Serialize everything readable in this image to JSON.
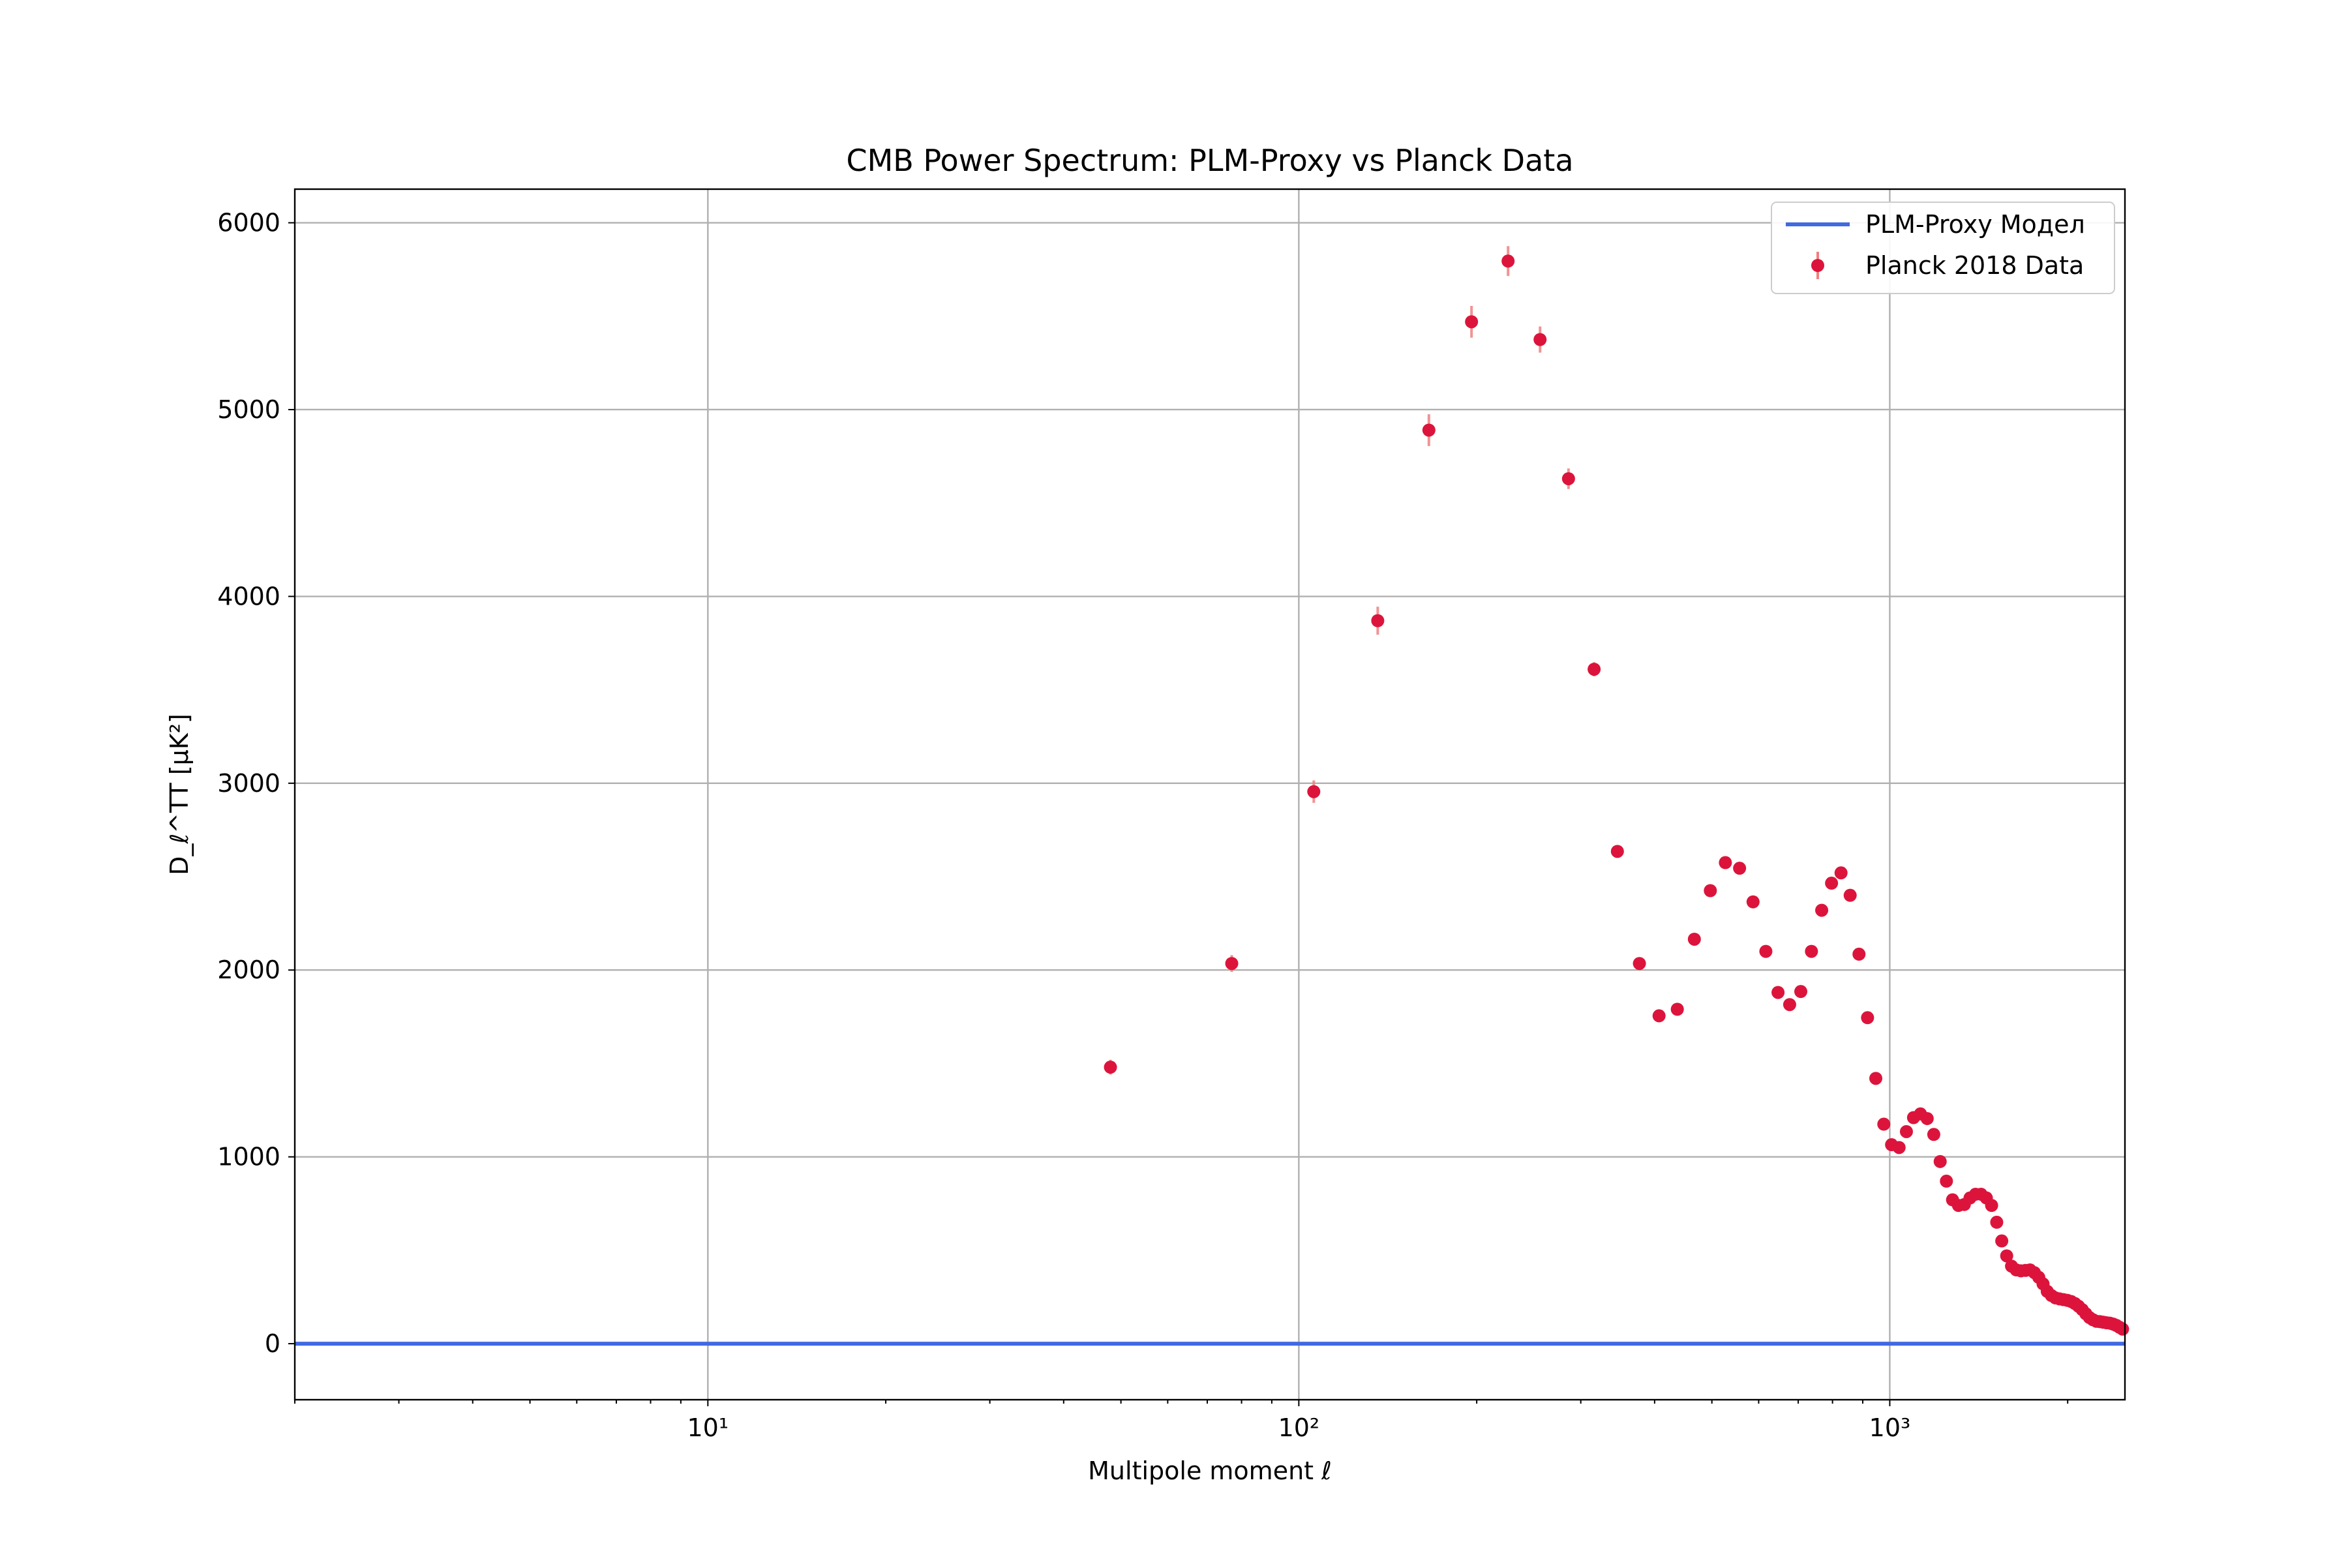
{
  "chart_data": {
    "type": "scatter",
    "title": "CMB Power Spectrum: PLM-Proxy vs Planck Data",
    "xlabel": "Multipole moment ℓ",
    "ylabel": "D_ℓ^TT [μK²]",
    "xscale": "log",
    "xlim": [
      2,
      2500
    ],
    "ylim": [
      -300,
      6180
    ],
    "grid": true,
    "legend_position": "upper right",
    "x_major_ticks": [
      10,
      100,
      1000
    ],
    "x_tick_labels": [
      "10¹",
      "10²",
      "10³"
    ],
    "y_ticks": [
      0,
      1000,
      2000,
      3000,
      4000,
      5000,
      6000
    ],
    "y_tick_labels": [
      "0",
      "1000",
      "2000",
      "3000",
      "4000",
      "5000",
      "6000"
    ],
    "colors": {
      "model": "#4169e1",
      "data": "#dc143c",
      "grid": "#b0b0b0"
    },
    "series": [
      {
        "name": "PLM-Proxy Модел",
        "kind": "line",
        "x": [
          2,
          2500
        ],
        "y": [
          0,
          0
        ]
      },
      {
        "name": "Planck 2018 Data",
        "kind": "errorbar",
        "x": [
          48,
          77,
          106,
          136,
          166,
          196,
          226,
          256,
          286,
          316,
          346,
          377,
          407,
          437,
          467,
          497,
          527,
          557,
          587,
          617,
          647,
          677,
          707,
          737,
          767,
          797,
          827,
          857,
          887,
          917,
          947,
          977,
          1007,
          1037,
          1067,
          1097,
          1127,
          1157,
          1187,
          1217,
          1247,
          1277,
          1307,
          1337,
          1367,
          1397,
          1427,
          1457,
          1487,
          1517,
          1547,
          1577,
          1607,
          1637,
          1667,
          1697,
          1727,
          1757,
          1787,
          1817,
          1847,
          1877,
          1907,
          1937,
          1967,
          1997,
          2027,
          2057,
          2087,
          2117,
          2147,
          2177,
          2207,
          2237,
          2267,
          2297,
          2327,
          2357,
          2387,
          2417,
          2447,
          2477
        ],
        "y": [
          1480,
          2035,
          2955,
          3870,
          4890,
          5470,
          5795,
          5375,
          4630,
          3610,
          2635,
          2035,
          1755,
          1790,
          2165,
          2425,
          2575,
          2545,
          2365,
          2100,
          1880,
          1815,
          1885,
          2100,
          2320,
          2465,
          2520,
          2400,
          2085,
          1745,
          1420,
          1175,
          1065,
          1050,
          1135,
          1210,
          1230,
          1205,
          1120,
          975,
          870,
          770,
          740,
          745,
          780,
          800,
          800,
          780,
          740,
          650,
          550,
          470,
          415,
          395,
          390,
          392,
          395,
          380,
          355,
          320,
          280,
          258,
          245,
          240,
          236,
          232,
          226,
          215,
          200,
          182,
          160,
          140,
          128,
          120,
          118,
          115,
          112,
          110,
          105,
          98,
          88,
          78
        ],
        "yerr": [
          40,
          45,
          60,
          75,
          85,
          85,
          80,
          70,
          55,
          38,
          25,
          18,
          15,
          14,
          15,
          16,
          16,
          15,
          14,
          12,
          11,
          10,
          10,
          11,
          12,
          12,
          12,
          12,
          11,
          10,
          9,
          8,
          7,
          7,
          7,
          7,
          7,
          7,
          7,
          6,
          6,
          6,
          6,
          6,
          6,
          6,
          6,
          6,
          6,
          5,
          5,
          5,
          5,
          5,
          5,
          5,
          5,
          5,
          5,
          5,
          5,
          5,
          5,
          5,
          5,
          5,
          5,
          5,
          5,
          5,
          5,
          5,
          5,
          5,
          5,
          5,
          5,
          5,
          5,
          5,
          5,
          5
        ]
      }
    ]
  }
}
